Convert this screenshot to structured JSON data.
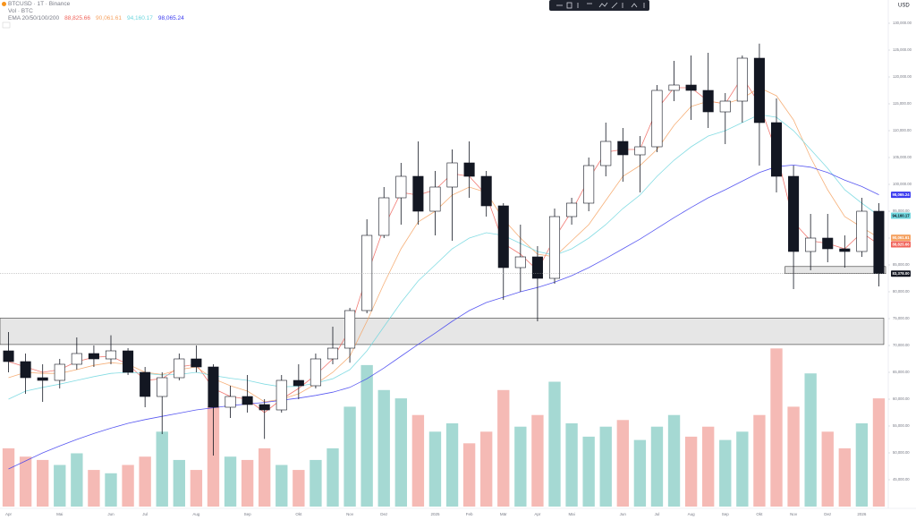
{
  "chart_data": {
    "type": "candlestick",
    "title": "BTCUSD · 1T · Binance",
    "volume_label": "Vol · BTC",
    "indicator_label": "EMA 20/50/100/200",
    "currency": "USD",
    "categories": [
      "Apr",
      null,
      null,
      "Mai",
      null,
      null,
      "Jun",
      null,
      "Jul",
      null,
      null,
      "Aug",
      null,
      null,
      "Sep",
      null,
      null,
      "Okt",
      null,
      null,
      "Nov",
      null,
      "Dez",
      null,
      null,
      "2025",
      null,
      "Feb",
      null,
      "Mär",
      null,
      "Apr",
      null,
      "Mai",
      null,
      null,
      "Jun",
      null,
      "Jul",
      null,
      "Aug",
      null,
      "Sep",
      null,
      "Okt",
      null,
      "Nov",
      null,
      "Dez",
      null,
      "2026",
      null
    ],
    "open": [
      69000,
      67000,
      64000,
      63500,
      66500,
      68500,
      67500,
      69000,
      65000,
      60500,
      64000,
      67500,
      66000,
      58500,
      60500,
      59000,
      58000,
      63500,
      62500,
      67500,
      69500,
      76500,
      90500,
      97500,
      101500,
      95000,
      99500,
      104000,
      101500,
      96000,
      84500,
      86500,
      82500,
      94000,
      96500,
      103500,
      108000,
      105500,
      107000,
      117500,
      118500,
      117500,
      113500,
      115500,
      123500,
      111500,
      101500,
      87500,
      90000,
      88000,
      87500,
      95000
    ],
    "high": [
      72500,
      68500,
      66500,
      67500,
      71500,
      70000,
      71900,
      69500,
      66000,
      65000,
      68500,
      70000,
      66500,
      62500,
      64500,
      60000,
      64500,
      66500,
      68500,
      73500,
      77000,
      93500,
      99500,
      104000,
      108000,
      102500,
      106500,
      108000,
      102500,
      96500,
      92500,
      88500,
      95500,
      97500,
      105000,
      111500,
      110500,
      109000,
      118500,
      123000,
      124000,
      124500,
      117000,
      124000,
      126200,
      116000,
      103500,
      94500,
      94500,
      90500,
      97500,
      96500
    ],
    "low": [
      65000,
      61000,
      59500,
      62000,
      65500,
      66000,
      66500,
      64500,
      58500,
      53500,
      63500,
      65000,
      49500,
      56500,
      57500,
      52600,
      57500,
      60000,
      62000,
      66500,
      66800,
      76000,
      90000,
      92500,
      92500,
      90500,
      89500,
      97500,
      94000,
      78500,
      80000,
      74500,
      81500,
      92500,
      95000,
      101500,
      100500,
      98500,
      106000,
      115500,
      112000,
      110500,
      107500,
      111500,
      103500,
      98500,
      80500,
      84000,
      85500,
      84500,
      86500,
      81000
    ],
    "close": [
      67000,
      64000,
      63500,
      66500,
      68500,
      67500,
      69000,
      65000,
      60500,
      64000,
      67500,
      66000,
      58500,
      60500,
      59000,
      58000,
      63500,
      62500,
      67500,
      69500,
      76500,
      90500,
      97500,
      101500,
      95000,
      99500,
      104000,
      101500,
      96000,
      84500,
      86500,
      82500,
      94000,
      96500,
      103500,
      108000,
      105500,
      107000,
      117500,
      118500,
      117500,
      113500,
      115500,
      123500,
      111500,
      101500,
      87500,
      90000,
      88000,
      87500,
      95000,
      83378
    ],
    "close_label": "83,378.00",
    "volume": [
      35000,
      30000,
      28000,
      25000,
      32000,
      22000,
      20000,
      25000,
      30000,
      45000,
      28000,
      22000,
      60000,
      30000,
      28000,
      35000,
      25000,
      22000,
      28000,
      35000,
      60000,
      85000,
      70000,
      65000,
      55000,
      45000,
      50000,
      38000,
      45000,
      70000,
      48000,
      55000,
      75000,
      50000,
      42000,
      48000,
      52000,
      40000,
      48000,
      55000,
      42000,
      48000,
      40000,
      45000,
      55000,
      95000,
      60000,
      80000,
      45000,
      35000,
      50000,
      65000
    ],
    "series": [
      {
        "color": "#f0635a",
        "last_label": "88,825.66",
        "values": [
          67000,
          66000,
          65000,
          65500,
          67000,
          67800,
          68000,
          66500,
          63500,
          63800,
          66000,
          66500,
          62000,
          60500,
          60000,
          57500,
          60000,
          62000,
          64500,
          67500,
          73000,
          83000,
          92000,
          98500,
          98000,
          99000,
          102000,
          101500,
          98000,
          89000,
          87000,
          84000,
          90000,
          95000,
          101000,
          106000,
          106500,
          106500,
          114000,
          118000,
          118000,
          115500,
          115000,
          120000,
          115000,
          106000,
          93000,
          89500,
          89000,
          88000,
          91000,
          88825.66
        ]
      },
      {
        "color": "#f5a262",
        "last_label": "90,061.61",
        "values": [
          64000,
          65000,
          64800,
          64800,
          65500,
          66300,
          66800,
          66500,
          65000,
          64600,
          65500,
          66000,
          63800,
          62500,
          61500,
          59500,
          60000,
          61000,
          62800,
          65000,
          68000,
          74500,
          81500,
          88000,
          93000,
          95000,
          98000,
          99500,
          98500,
          93500,
          90000,
          87000,
          86500,
          89500,
          92500,
          97000,
          101500,
          103500,
          106500,
          111000,
          114500,
          115500,
          115000,
          116000,
          118000,
          116500,
          112000,
          105000,
          99000,
          94000,
          92000,
          90061.61
        ]
      },
      {
        "color": "#6fd6de",
        "last_label": "94,160.17",
        "values": [
          60000,
          61500,
          62200,
          62800,
          63500,
          64200,
          64800,
          65000,
          64800,
          64500,
          64600,
          65000,
          64400,
          63900,
          63500,
          62800,
          62300,
          62400,
          63000,
          63800,
          65500,
          69000,
          73500,
          78000,
          82000,
          85000,
          88000,
          90000,
          91000,
          90500,
          89000,
          87500,
          86800,
          88000,
          90000,
          92500,
          95500,
          98000,
          101500,
          104500,
          107000,
          109000,
          110000,
          111500,
          113000,
          112500,
          110000,
          106500,
          103000,
          99000,
          96500,
          94160.17
        ]
      },
      {
        "color": "#3b3bef",
        "last_label": "98,065.24",
        "values": [
          47000,
          48500,
          50000,
          51300,
          52500,
          53600,
          54600,
          55500,
          56200,
          56800,
          57400,
          58000,
          58400,
          58800,
          59100,
          59400,
          59800,
          60200,
          60700,
          61300,
          62200,
          63800,
          65800,
          68000,
          70200,
          72300,
          74500,
          76500,
          78000,
          79000,
          80000,
          80800,
          81800,
          83000,
          84500,
          86200,
          88000,
          89800,
          91800,
          93800,
          95700,
          97500,
          99000,
          100600,
          102200,
          103300,
          103600,
          103200,
          102200,
          100800,
          99600,
          98065.24
        ]
      }
    ],
    "zones": [
      {
        "low": 70180,
        "high": 75080
      },
      {
        "low": 83400,
        "high": 84700
      }
    ],
    "up_color": "#ffffff",
    "down_color": "#131722",
    "volume_up_color": "#8fd0c8",
    "volume_down_color": "#f2a9a2",
    "ylim": [
      40000,
      133000
    ],
    "y2lim": [
      0,
      300000
    ],
    "yticks": [
      {
        "value": 45000,
        "label": "45,000.00"
      },
      {
        "value": 50000,
        "label": "50,000.00"
      },
      {
        "value": 55000,
        "label": "55,000.00"
      },
      {
        "value": 60000,
        "label": "60,000.00"
      },
      {
        "value": 65000,
        "label": "65,000.00"
      },
      {
        "value": 70000,
        "label": "70,000.00"
      },
      {
        "value": 75000,
        "label": "75,000.00"
      },
      {
        "value": 80000,
        "label": "80,000.00"
      },
      {
        "value": 85000,
        "label": "85,000.00"
      },
      {
        "value": 90000,
        "label": "90,000.00"
      },
      {
        "value": 95000,
        "label": "95,000.00"
      },
      {
        "value": 100000,
        "label": "100,000.00"
      },
      {
        "value": 105000,
        "label": "105,000.00"
      },
      {
        "value": 110000,
        "label": "110,000.00"
      },
      {
        "value": 115000,
        "label": "115,000.00"
      },
      {
        "value": 120000,
        "label": "120,000.00"
      },
      {
        "value": 125000,
        "label": "125,000.00"
      },
      {
        "value": 130000,
        "label": "130,000.00"
      }
    ],
    "grid": false
  }
}
